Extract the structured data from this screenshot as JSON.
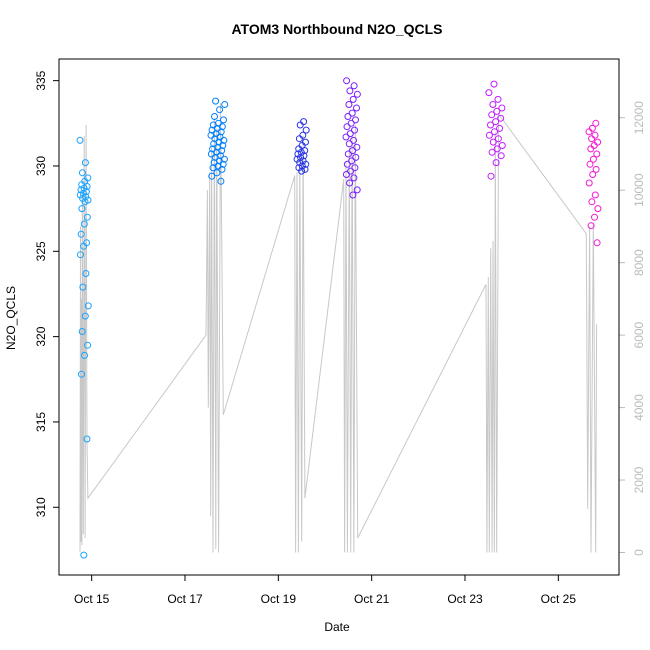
{
  "chart_data": {
    "type": "scatter",
    "title": "ATOM3 Northbound N2O_QCLS",
    "xlabel": "Date",
    "ylabel": "N2O_QCLS",
    "x_ticks": [
      {
        "day": 15,
        "label": "Oct 15"
      },
      {
        "day": 17,
        "label": "Oct 17"
      },
      {
        "day": 19,
        "label": "Oct 19"
      },
      {
        "day": 21,
        "label": "Oct 21"
      },
      {
        "day": 23,
        "label": "Oct 23"
      },
      {
        "day": 25,
        "label": "Oct 25"
      }
    ],
    "xlim": [
      14.3,
      26.3
    ],
    "ylim": [
      306.5,
      335.8
    ],
    "y_ticks": [
      310,
      315,
      320,
      325,
      330,
      335
    ],
    "y2lim": [
      -400,
      13400
    ],
    "y2_ticks": [
      0,
      2000,
      4000,
      6000,
      8000,
      10000,
      12000
    ],
    "y2_color": "#bbbbbb",
    "grid": false,
    "flights": [
      {
        "color": "#1aa3ff",
        "x_start": 14.75,
        "x_end": 14.93,
        "y_min": 307.2,
        "y_max": 331.5,
        "values": [
          331.5,
          330.2,
          329.6,
          329.3,
          329.1,
          328.9,
          328.8,
          328.7,
          328.6,
          328.5,
          328.4,
          328.3,
          328.2,
          328.1,
          328.0,
          327.9,
          327.5,
          327.0,
          326.6,
          326.0,
          325.5,
          325.3,
          324.8,
          323.7,
          322.9,
          321.8,
          321.2,
          320.3,
          319.5,
          318.9,
          317.8,
          314.0,
          307.2
        ]
      },
      {
        "color": "#0080ff",
        "x_start": 17.55,
        "x_end": 17.85,
        "y_min": 329.1,
        "y_max": 333.8,
        "values": [
          333.8,
          333.6,
          333.3,
          332.9,
          332.7,
          332.5,
          332.4,
          332.3,
          332.2,
          332.1,
          332.0,
          331.9,
          331.8,
          331.7,
          331.6,
          331.5,
          331.4,
          331.3,
          331.2,
          331.1,
          331.0,
          330.9,
          330.8,
          330.7,
          330.6,
          330.5,
          330.4,
          330.3,
          330.2,
          330.1,
          330.0,
          329.9,
          329.8,
          329.6,
          329.4,
          329.1
        ]
      },
      {
        "color": "#2a35e6",
        "x_start": 19.4,
        "x_end": 19.6,
        "y_min": 329.7,
        "y_max": 332.6,
        "values": [
          332.6,
          332.4,
          332.1,
          331.8,
          331.6,
          331.4,
          331.2,
          331.0,
          330.9,
          330.8,
          330.7,
          330.6,
          330.5,
          330.4,
          330.3,
          330.2,
          330.1,
          330.0,
          329.9,
          329.8,
          329.7
        ]
      },
      {
        "color": "#7a1fff",
        "x_start": 20.45,
        "x_end": 20.7,
        "y_min": 328.3,
        "y_max": 335.0,
        "values": [
          335.0,
          334.7,
          334.4,
          334.2,
          333.9,
          333.6,
          333.4,
          333.1,
          332.9,
          332.7,
          332.5,
          332.3,
          332.1,
          331.9,
          331.7,
          331.5,
          331.3,
          331.1,
          330.9,
          330.7,
          330.5,
          330.3,
          330.1,
          329.9,
          329.7,
          329.5,
          329.3,
          329.0,
          328.6,
          328.3
        ]
      },
      {
        "color": "#c21cff",
        "x_start": 23.5,
        "x_end": 23.8,
        "y_min": 329.4,
        "y_max": 334.8,
        "values": [
          334.8,
          334.3,
          333.9,
          333.6,
          333.4,
          333.2,
          333.0,
          332.8,
          332.6,
          332.4,
          332.2,
          332.0,
          331.8,
          331.6,
          331.4,
          331.2,
          331.0,
          330.8,
          330.6,
          330.2,
          329.4
        ]
      },
      {
        "color": "#f51ad1",
        "x_start": 25.65,
        "x_end": 25.85,
        "y_min": 325.5,
        "y_max": 332.5,
        "values": [
          332.5,
          332.2,
          332.0,
          331.8,
          331.6,
          331.4,
          331.2,
          331.0,
          330.7,
          330.4,
          330.1,
          329.8,
          329.5,
          329.0,
          328.3,
          327.9,
          327.5,
          327.0,
          326.5,
          325.5
        ]
      }
    ],
    "altitude_trace": {
      "color": "#c8c8c8",
      "points": [
        [
          14.75,
          0
        ],
        [
          14.76,
          9000
        ],
        [
          14.77,
          300
        ],
        [
          14.78,
          7000
        ],
        [
          14.79,
          200
        ],
        [
          14.8,
          10000
        ],
        [
          14.82,
          500
        ],
        [
          14.84,
          11500
        ],
        [
          14.86,
          400
        ],
        [
          14.88,
          11800
        ],
        [
          14.9,
          3000
        ],
        [
          14.92,
          1500
        ],
        [
          17.45,
          6000
        ],
        [
          17.48,
          10000
        ],
        [
          17.5,
          4000
        ],
        [
          17.53,
          10500
        ],
        [
          17.55,
          1000
        ],
        [
          17.57,
          11200
        ],
        [
          17.6,
          0
        ],
        [
          17.63,
          12000
        ],
        [
          17.66,
          100
        ],
        [
          17.68,
          11700
        ],
        [
          17.72,
          0
        ],
        [
          17.76,
          12400
        ],
        [
          17.82,
          3800
        ],
        [
          19.35,
          10400
        ],
        [
          19.37,
          0
        ],
        [
          19.4,
          10500
        ],
        [
          19.43,
          0
        ],
        [
          19.46,
          11000
        ],
        [
          19.5,
          300
        ],
        [
          19.53,
          11500
        ],
        [
          19.57,
          1500
        ],
        [
          20.4,
          10300
        ],
        [
          20.42,
          0
        ],
        [
          20.45,
          10800
        ],
        [
          20.48,
          0
        ],
        [
          20.52,
          11200
        ],
        [
          20.55,
          0
        ],
        [
          20.58,
          11500
        ],
        [
          20.62,
          0
        ],
        [
          20.65,
          11800
        ],
        [
          20.7,
          400
        ],
        [
          23.45,
          7400
        ],
        [
          23.47,
          0
        ],
        [
          23.5,
          7600
        ],
        [
          23.52,
          0
        ],
        [
          23.55,
          8400
        ],
        [
          23.58,
          0
        ],
        [
          23.6,
          8600
        ],
        [
          23.63,
          0
        ],
        [
          23.65,
          11600
        ],
        [
          23.68,
          0
        ],
        [
          23.72,
          12100
        ],
        [
          25.6,
          8800
        ],
        [
          25.63,
          1200
        ],
        [
          25.67,
          9000
        ],
        [
          25.7,
          0
        ],
        [
          25.75,
          9100
        ],
        [
          25.8,
          0
        ],
        [
          25.82,
          6300
        ]
      ]
    }
  }
}
